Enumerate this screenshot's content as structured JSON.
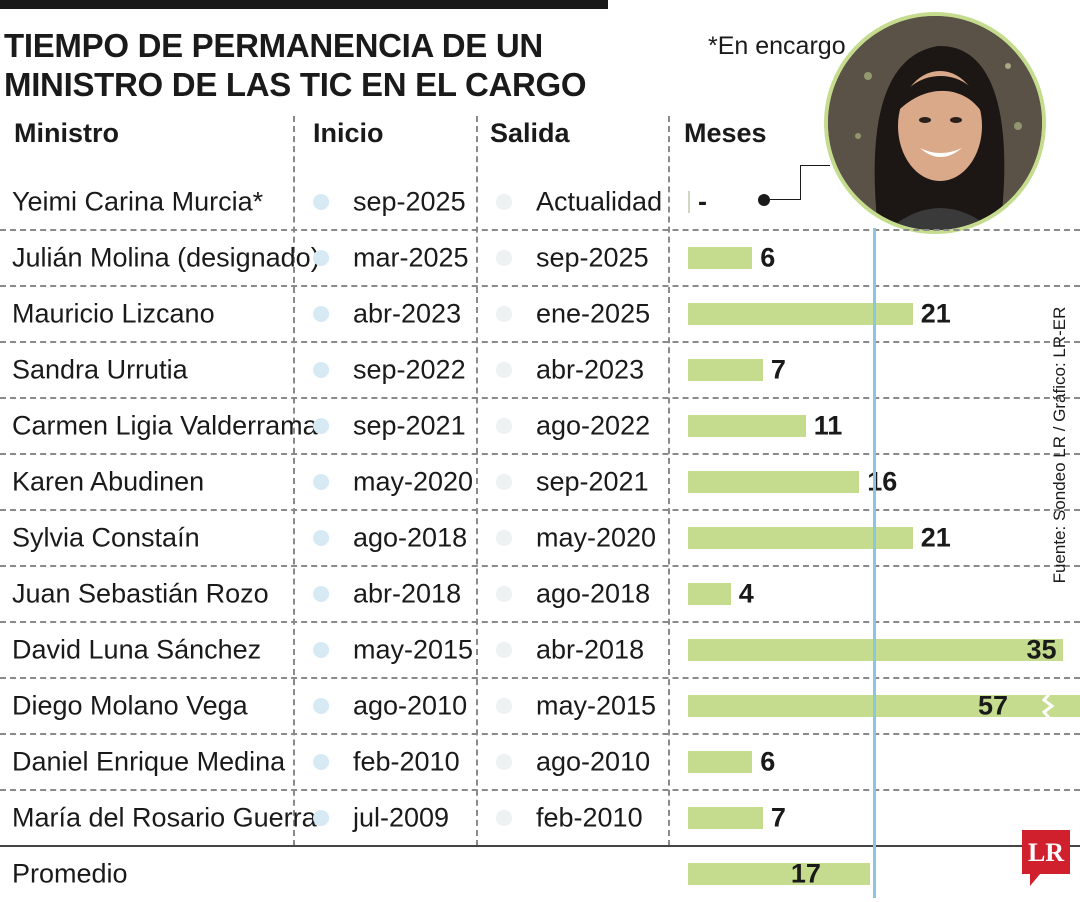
{
  "title_lines": [
    "TIEMPO DE PERMANENCIA DE UN",
    "MINISTRO DE LAS TIC EN EL CARGO"
  ],
  "note": "*En encargo",
  "source": "Fuente: Sondeo LR / Gráfico: LR-ER",
  "logo": "LR",
  "columns": {
    "minister": "Ministro",
    "start": "Inicio",
    "end": "Salida",
    "months": "Meses"
  },
  "colors": {
    "bar": "#c5dc8e",
    "average_line": "#8cc6de",
    "logo": "#d0202d",
    "photo_border": "#c5dc8e"
  },
  "chart_data": {
    "type": "bar",
    "orientation": "horizontal",
    "title": "TIEMPO DE PERMANENCIA DE UN MINISTRO DE LAS TIC EN EL CARGO",
    "xlabel": "Meses",
    "scale_note": "Bar for Diego Molano Vega (57) is truncated with a break mark",
    "average": 17,
    "rows": [
      {
        "name": "Yeimi Carina Murcia*",
        "start": "sep-2025",
        "end": "Actualidad",
        "months": null,
        "label": "-"
      },
      {
        "name": "Julián Molina (designado)",
        "start": "mar-2025",
        "end": "sep-2025",
        "months": 6,
        "label": "6"
      },
      {
        "name": "Mauricio Lizcano",
        "start": "abr-2023",
        "end": "ene-2025",
        "months": 21,
        "label": "21"
      },
      {
        "name": "Sandra Urrutia",
        "start": "sep-2022",
        "end": "abr-2023",
        "months": 7,
        "label": "7"
      },
      {
        "name": "Carmen Ligia Valderrama",
        "start": "sep-2021",
        "end": "ago-2022",
        "months": 11,
        "label": "11"
      },
      {
        "name": "Karen Abudinen",
        "start": "may-2020",
        "end": "sep-2021",
        "months": 16,
        "label": "16"
      },
      {
        "name": "Sylvia Constaín",
        "start": "ago-2018",
        "end": "may-2020",
        "months": 21,
        "label": "21"
      },
      {
        "name": "Juan Sebastián Rozo",
        "start": "abr-2018",
        "end": "ago-2018",
        "months": 4,
        "label": "4"
      },
      {
        "name": "David Luna Sánchez",
        "start": "may-2015",
        "end": "abr-2018",
        "months": 35,
        "label": "35"
      },
      {
        "name": "Diego Molano Vega",
        "start": "ago-2010",
        "end": "may-2015",
        "months": 57,
        "label": "57",
        "truncated": true
      },
      {
        "name": "Daniel Enrique Medina",
        "start": "feb-2010",
        "end": "ago-2010",
        "months": 6,
        "label": "6"
      },
      {
        "name": "María del Rosario Guerra",
        "start": "jul-2009",
        "end": "feb-2010",
        "months": 7,
        "label": "7"
      }
    ],
    "summary": {
      "name": "Promedio",
      "months": 17,
      "label": "17"
    }
  }
}
